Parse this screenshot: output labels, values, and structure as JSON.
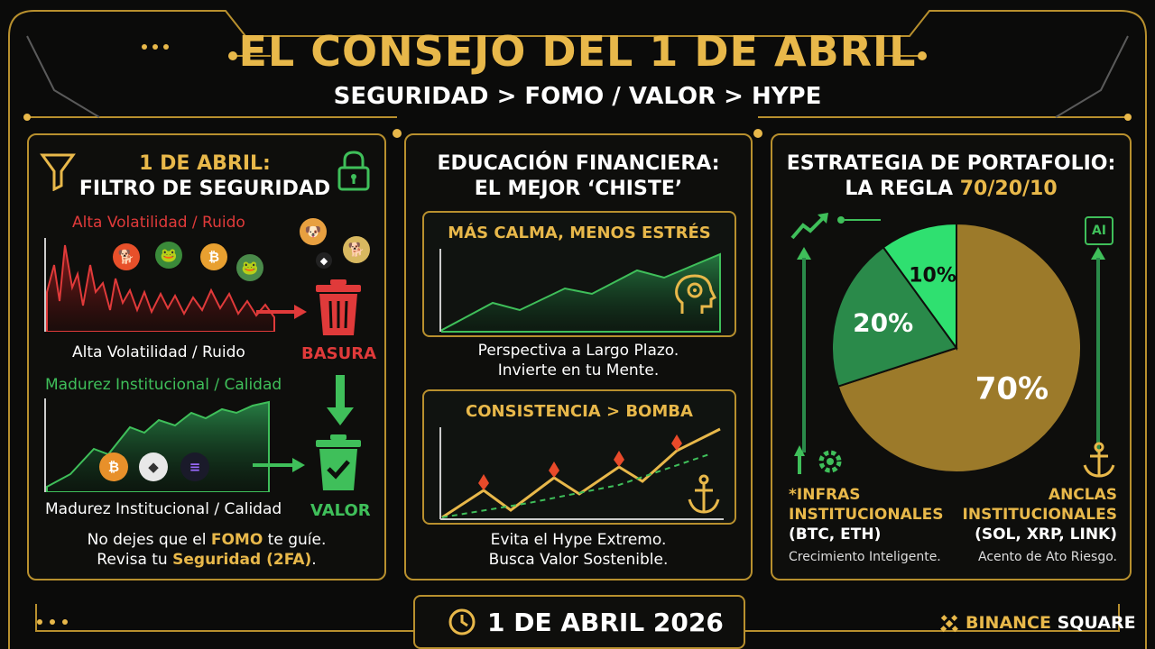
{
  "header": {
    "title": "EL CONSEJO DEL 1 DE ABRIL",
    "subtitle": "SEGURIDAD > FOMO / VALOR > HYPE"
  },
  "left_panel": {
    "title_line1": "1 DE ABRIL:",
    "title_line2": "FILTRO DE SEGURIDAD",
    "top_label": "Alta Volatilidad / Ruido",
    "top_caption": "Alta Volatilidad / Ruido",
    "trash_label": "BASURA",
    "bottom_label": "Madurez Institucional / Calidad",
    "bottom_caption": "Madurez Institucional / Calidad",
    "value_label": "VALOR",
    "footer_line1_a": "No dejes que el ",
    "footer_line1_b": "FOMO",
    "footer_line1_c": " te guíe.",
    "footer_line2_a": "Revisa tu ",
    "footer_line2_b": "Seguridad (2FA)",
    "footer_line2_c": ".",
    "colors": {
      "noise": "#e03a3a",
      "quality": "#3fbf5a"
    }
  },
  "middle_panel": {
    "title_line1": "EDUCACIÓN FINANCIERA:",
    "title_line2": "EL MEJOR ‘CHISTE’",
    "card1_title": "MÁS CALMA, MENOS ESTRÉS",
    "card1_line1": "Perspectiva a Largo Plazo.",
    "card1_line2": "Invierte en tu Mente.",
    "card2_title": "CONSISTENCIA > BOMBA",
    "card2_line1": "Evita el Hype Extremo.",
    "card2_line2": "Busca Valor Sostenible."
  },
  "right_panel": {
    "title_line1": "ESTRATEGIA DE PORTAFOLIO:",
    "title_line2_a": "LA REGLA ",
    "title_line2_b": "70/20/10",
    "ai_label": "AI",
    "left_heading1": "*INFRAS",
    "left_heading2": "INSTITUCIONALES",
    "left_tickers": "(BTC, ETH)",
    "left_note": "Crecimiento Inteligente.",
    "right_heading1": "ANCLAS",
    "right_heading2": "INSTITUCIONALES",
    "right_tickers": "(SOL, XRP, LINK)",
    "right_note": "Acento de Ato Riesgo.",
    "pie": [
      {
        "label": "70%",
        "value": 70,
        "color": "#9c7a2a"
      },
      {
        "label": "20%",
        "value": 20,
        "color": "#2a8a4a"
      },
      {
        "label": "10%",
        "value": 10,
        "color": "#2fe070"
      }
    ]
  },
  "footer": {
    "date": "1 DE ABRIL 2026",
    "brand_a": "BINANCE",
    "brand_b": " SQUARE"
  }
}
